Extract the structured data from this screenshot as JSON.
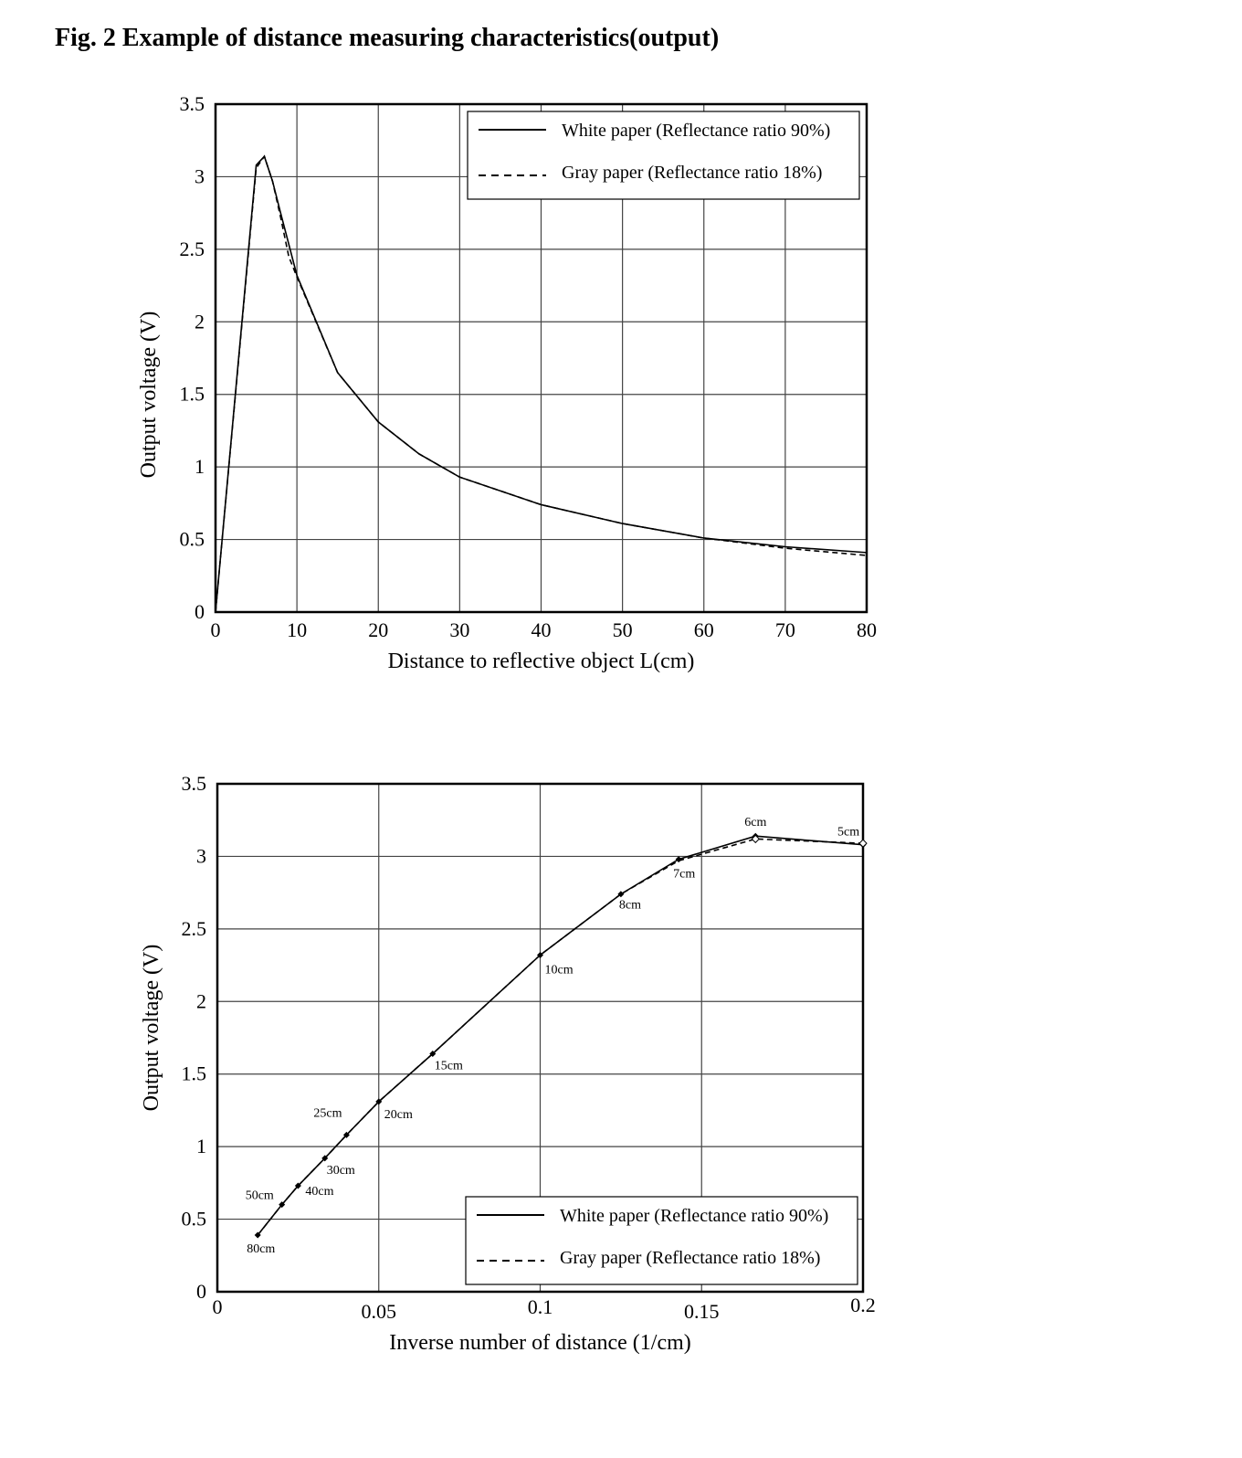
{
  "title": "Fig. 2 Example of distance measuring characteristics(output)",
  "chart_data": [
    {
      "type": "line",
      "xlabel": "Distance to reflective object L(cm)",
      "ylabel": "Output voltage (V)",
      "xlim": [
        0,
        80
      ],
      "ylim": [
        0,
        3.5
      ],
      "xticks": [
        "0",
        "10",
        "20",
        "30",
        "40",
        "50",
        "60",
        "70",
        "80"
      ],
      "yticks": [
        "0",
        "0.5",
        "1",
        "1.5",
        "2",
        "2.5",
        "3",
        "3.5"
      ],
      "grid": true,
      "legend_position": "top-right",
      "series": [
        {
          "name": "White paper (Reflectance ratio 90%)",
          "style": "solid",
          "x": [
            0,
            5,
            6,
            7,
            8,
            10,
            15,
            20,
            25,
            30,
            40,
            50,
            60,
            70,
            80
          ],
          "y": [
            0,
            3.08,
            3.14,
            2.97,
            2.75,
            2.32,
            1.65,
            1.31,
            1.09,
            0.93,
            0.74,
            0.61,
            0.51,
            0.45,
            0.41
          ]
        },
        {
          "name": "Gray paper (Reflectance ratio 18%)",
          "style": "dashed",
          "x": [
            0,
            5,
            6,
            7,
            8,
            9,
            10,
            15,
            20,
            25,
            30,
            40,
            50,
            60,
            70,
            80
          ],
          "y": [
            0,
            3.06,
            3.14,
            2.97,
            2.72,
            2.45,
            2.31,
            1.65,
            1.31,
            1.09,
            0.93,
            0.74,
            0.61,
            0.51,
            0.44,
            0.39
          ]
        }
      ]
    },
    {
      "type": "line",
      "xlabel": "Inverse number of distance (1/cm)",
      "ylabel": "Output voltage (V)",
      "xlim": [
        0,
        0.2
      ],
      "ylim": [
        0,
        3.5
      ],
      "xticks": [
        "0",
        "0.05",
        "0.1",
        "0.15",
        "0.2"
      ],
      "yticks": [
        "0",
        "0.5",
        "1",
        "1.5",
        "2",
        "2.5",
        "3",
        "3.5"
      ],
      "grid": true,
      "legend_position": "bottom-right",
      "point_labels": [
        "80cm",
        "50cm",
        "40cm",
        "30cm",
        "25cm",
        "20cm",
        "15cm",
        "10cm",
        "8cm",
        "7cm",
        "6cm",
        "5cm"
      ],
      "series": [
        {
          "name": "White paper (Reflectance ratio 90%)",
          "style": "solid",
          "x": [
            0.0125,
            0.02,
            0.025,
            0.0333,
            0.04,
            0.05,
            0.0667,
            0.1,
            0.125,
            0.1429,
            0.1667,
            0.2
          ],
          "y": [
            0.39,
            0.6,
            0.73,
            0.92,
            1.08,
            1.31,
            1.64,
            2.32,
            2.74,
            2.98,
            3.14,
            3.08
          ]
        },
        {
          "name": "Gray paper (Reflectance ratio 18%)",
          "style": "dashed",
          "x": [
            0.0125,
            0.02,
            0.025,
            0.0333,
            0.04,
            0.05,
            0.0667,
            0.1,
            0.125,
            0.1429,
            0.1667,
            0.2
          ],
          "y": [
            0.39,
            0.6,
            0.73,
            0.92,
            1.08,
            1.31,
            1.64,
            2.32,
            2.74,
            2.97,
            3.12,
            3.09
          ]
        }
      ]
    }
  ]
}
